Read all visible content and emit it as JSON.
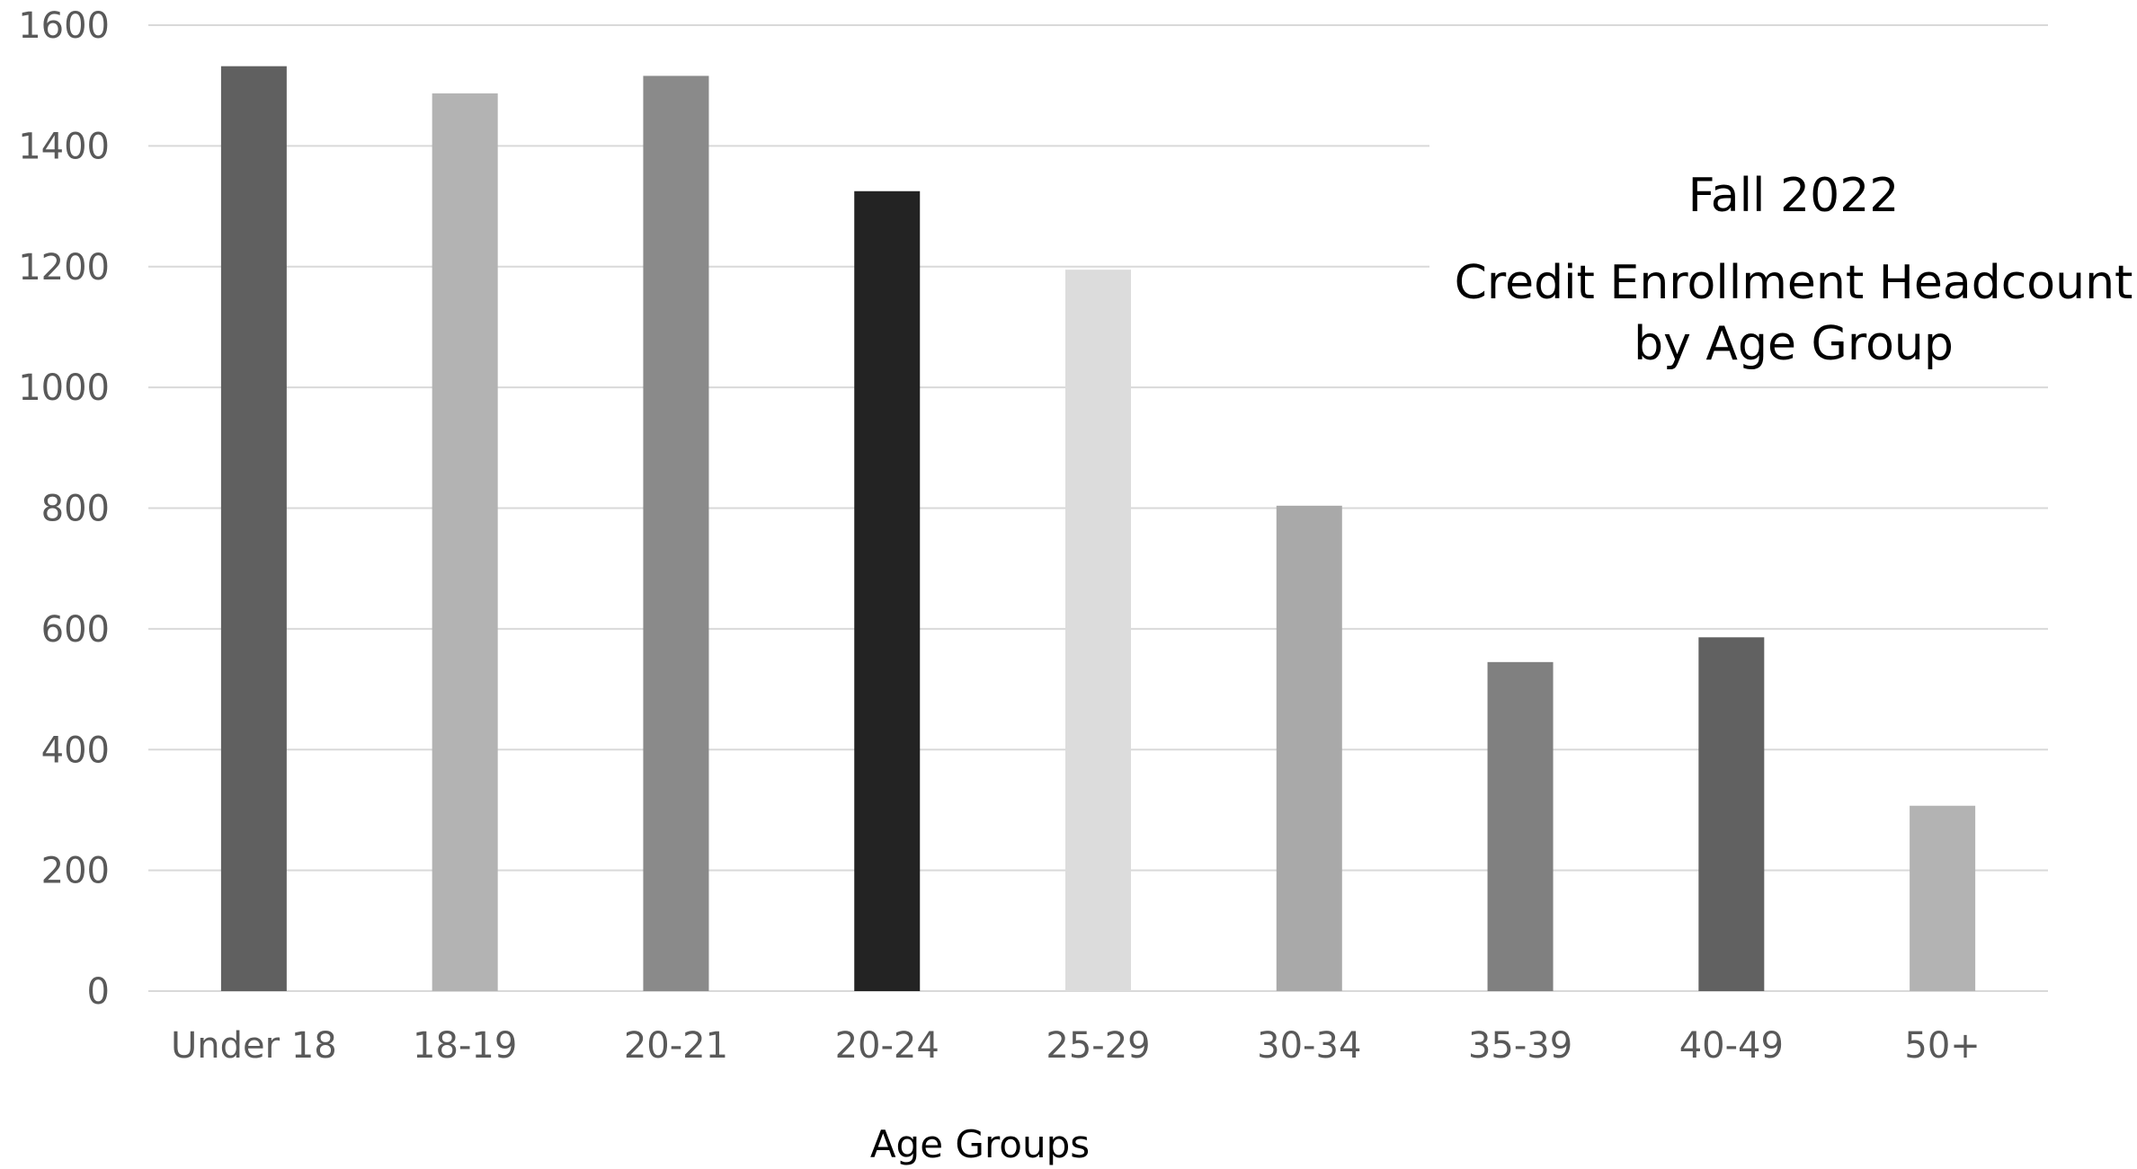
{
  "chart_data": {
    "type": "bar",
    "title_lines": [
      "Fall 2022",
      "Credit Enrollment Headcount",
      "by Age Group"
    ],
    "xlabel": "Age Groups",
    "ylabel": "",
    "categories": [
      "Under 18",
      "18-19",
      "20-21",
      "20-24",
      "25-29",
      "30-34",
      "35-39",
      "40-49",
      "50+"
    ],
    "values": [
      1532,
      1487,
      1516,
      1325,
      1195,
      804,
      545,
      586,
      307
    ],
    "bar_colors": [
      "#606060",
      "#b3b3b3",
      "#8a8a8a",
      "#232323",
      "#dcdcdc",
      "#a9a9a9",
      "#808080",
      "#616161",
      "#b3b3b3"
    ],
    "ylim": [
      0,
      1600
    ],
    "yticks": [
      "0",
      "200",
      "400",
      "600",
      "800",
      "1000",
      "1200",
      "1400",
      "1600"
    ],
    "grid": true,
    "legend": "none"
  }
}
